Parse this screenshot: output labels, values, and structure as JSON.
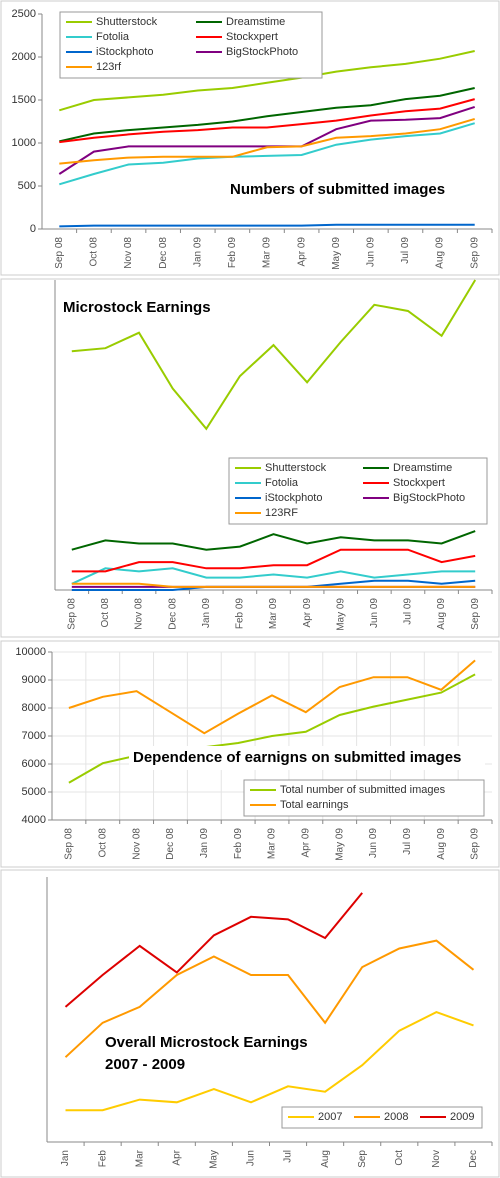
{
  "chart_data": [
    {
      "type": "line",
      "title": "Numbers of submitted images",
      "categories": [
        "Sep 08",
        "Oct 08",
        "Nov 08",
        "Dec 08",
        "Jan 09",
        "Feb 09",
        "Mar 09",
        "Apr 09",
        "May 09",
        "Jun 09",
        "Jul 09",
        "Aug 09",
        "Sep 09"
      ],
      "ylim": [
        0,
        2500
      ],
      "yticks": [
        0,
        500,
        1000,
        1500,
        2000,
        2500
      ],
      "grid": false,
      "series": [
        {
          "name": "Shutterstock",
          "color": "#99cc00",
          "values": [
            1380,
            1500,
            1530,
            1560,
            1610,
            1640,
            1700,
            1760,
            1830,
            1880,
            1920,
            1980,
            2070
          ]
        },
        {
          "name": "Dreamstime",
          "color": "#006600",
          "values": [
            1020,
            1110,
            1150,
            1180,
            1210,
            1250,
            1310,
            1360,
            1410,
            1440,
            1510,
            1550,
            1640
          ]
        },
        {
          "name": "Fotolia",
          "color": "#33cccc",
          "values": [
            520,
            640,
            750,
            770,
            820,
            840,
            850,
            860,
            980,
            1040,
            1080,
            1110,
            1230
          ]
        },
        {
          "name": "Stockxpert",
          "color": "#ff0000",
          "values": [
            1010,
            1060,
            1100,
            1130,
            1150,
            1180,
            1180,
            1220,
            1260,
            1320,
            1370,
            1400,
            1510
          ]
        },
        {
          "name": "iStockphoto",
          "color": "#0066cc",
          "values": [
            30,
            40,
            40,
            40,
            40,
            40,
            40,
            40,
            50,
            50,
            50,
            50,
            50
          ]
        },
        {
          "name": "BigStockPhoto",
          "color": "#800080",
          "values": [
            640,
            900,
            960,
            960,
            960,
            960,
            960,
            960,
            1160,
            1260,
            1270,
            1290,
            1420
          ]
        },
        {
          "name": "123rf",
          "color": "#ff9900",
          "values": [
            760,
            800,
            830,
            840,
            840,
            840,
            950,
            960,
            1060,
            1080,
            1110,
            1160,
            1280
          ]
        }
      ]
    },
    {
      "type": "line",
      "title": "Microstock Earnings",
      "categories": [
        "Sep 08",
        "Oct 08",
        "Nov 08",
        "Dec 08",
        "Jan 09",
        "Feb 09",
        "Mar 09",
        "Apr 09",
        "May 09",
        "Jun 09",
        "Jul 09",
        "Aug 09",
        "Sep 09"
      ],
      "ylim": [
        0,
        100
      ],
      "series": [
        {
          "name": "Shutterstock",
          "color": "#99cc00",
          "values": [
            77,
            78,
            83,
            65,
            52,
            69,
            79,
            67,
            80,
            92,
            90,
            82,
            100
          ]
        },
        {
          "name": "Dreamstime",
          "color": "#006600",
          "values": [
            13,
            16,
            15,
            15,
            13,
            14,
            18,
            15,
            17,
            16,
            16,
            15,
            19
          ]
        },
        {
          "name": "Fotolia",
          "color": "#33cccc",
          "values": [
            2,
            7,
            6,
            7,
            4,
            4,
            5,
            4,
            6,
            4,
            5,
            6,
            6
          ]
        },
        {
          "name": "Stockxpert",
          "color": "#ff0000",
          "values": [
            6,
            6,
            9,
            9,
            7,
            7,
            8,
            8,
            13,
            13,
            13,
            9,
            11
          ]
        },
        {
          "name": "iStockphoto",
          "color": "#0066cc",
          "values": [
            0,
            0,
            0,
            0,
            1,
            1,
            1,
            1,
            2,
            3,
            3,
            2,
            3
          ]
        },
        {
          "name": "BigStockPhoto",
          "color": "#800080",
          "values": [
            1,
            1,
            1,
            1,
            1,
            1,
            1,
            1,
            1,
            1,
            1,
            1,
            1
          ]
        },
        {
          "name": "123RF",
          "color": "#ff9900",
          "values": [
            2,
            2,
            2,
            1,
            1,
            1,
            1,
            1,
            1,
            1,
            1,
            1,
            1
          ]
        }
      ]
    },
    {
      "type": "line",
      "title": "Dependence of earnigns on submitted images",
      "categories": [
        "Sep 08",
        "Oct 08",
        "Nov 08",
        "Dec 08",
        "Jan 09",
        "Feb 09",
        "Mar 09",
        "Apr 09",
        "May 09",
        "Jun 09",
        "Jul 09",
        "Aug 09",
        "Sep 09"
      ],
      "ylim": [
        4000,
        10000
      ],
      "yticks": [
        4000,
        5000,
        6000,
        7000,
        8000,
        9000,
        10000
      ],
      "grid": true,
      "series": [
        {
          "name": "Total number of submitted images",
          "color": "#99cc00",
          "values": [
            5330,
            6030,
            6300,
            6500,
            6600,
            6750,
            7000,
            7150,
            7750,
            8050,
            8300,
            8550,
            9200
          ]
        },
        {
          "name": "Total earnings",
          "color": "#ff9900",
          "values": [
            8000,
            8400,
            8600,
            7850,
            7100,
            7800,
            8450,
            7850,
            8750,
            9100,
            9100,
            8650,
            9700
          ]
        }
      ]
    },
    {
      "type": "line",
      "title": "Overall Microstock Earnings",
      "subtitle": "2007 - 2009",
      "categories": [
        "Jan",
        "Feb",
        "Mar",
        "Apr",
        "May",
        "Jun",
        "Jul",
        "Aug",
        "Sep",
        "Oct",
        "Nov",
        "Dec"
      ],
      "ylim": [
        0,
        100
      ],
      "series": [
        {
          "name": "2007",
          "color": "#ffcc00",
          "values": [
            12,
            12,
            16,
            15,
            20,
            15,
            21,
            19,
            29,
            42,
            49,
            44
          ]
        },
        {
          "name": "2008",
          "color": "#ff9900",
          "values": [
            32,
            45,
            51,
            63,
            70,
            63,
            63,
            45,
            66,
            73,
            76,
            65
          ]
        },
        {
          "name": "2009",
          "color": "#dd0000",
          "values": [
            51,
            63,
            74,
            64,
            78,
            85,
            84,
            77,
            94,
            null,
            null,
            null
          ]
        }
      ]
    }
  ]
}
